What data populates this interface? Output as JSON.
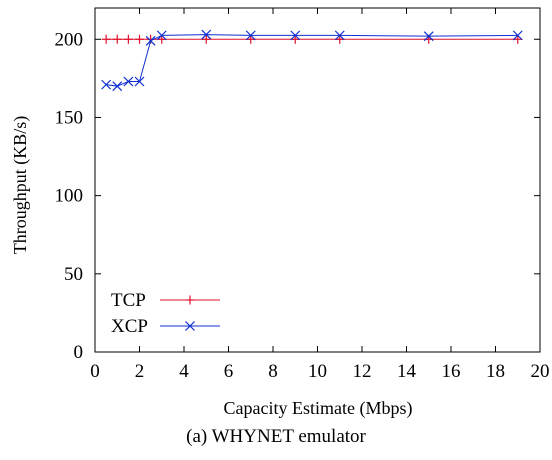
{
  "caption": "(a)  WHYNET emulator",
  "chart_data": {
    "type": "line",
    "title": "",
    "xlabel": "Capacity Estimate (Mbps)",
    "ylabel": "Throughput (KB/s)",
    "xlim": [
      0,
      20
    ],
    "ylim": [
      0,
      220
    ],
    "xticks": [
      0,
      2,
      4,
      6,
      8,
      10,
      12,
      14,
      16,
      18,
      20
    ],
    "yticks": [
      0,
      50,
      100,
      150,
      200
    ],
    "grid": false,
    "legend_position": "bottom-left",
    "series": [
      {
        "name": "TCP",
        "color": "#e0102a",
        "marker": "plus",
        "x": [
          0.5,
          1,
          1.5,
          2,
          2.5,
          3,
          5,
          7,
          9,
          11,
          15,
          19
        ],
        "y": [
          200,
          200,
          200,
          200,
          200,
          200,
          200,
          200,
          200,
          200,
          200,
          200
        ]
      },
      {
        "name": "XCP",
        "color": "#1030d0",
        "marker": "cross",
        "x": [
          0.5,
          1,
          1.5,
          2,
          2.5,
          3,
          5,
          7,
          9,
          11,
          15,
          19
        ],
        "y": [
          171,
          170,
          173,
          173,
          199,
          202.5,
          203,
          202.5,
          202.5,
          202.5,
          202,
          202.5
        ]
      }
    ]
  }
}
